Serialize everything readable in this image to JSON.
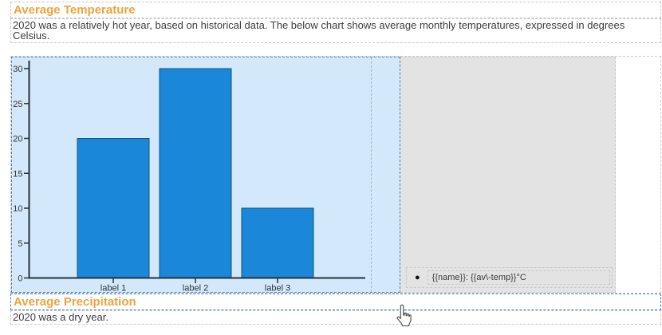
{
  "temperature_section": {
    "heading": "Average Temperature",
    "description": "2020 was a relatively hot year, based on historical data. The below chart shows average monthly temperatures, expressed in degrees Celsius."
  },
  "precipitation_section": {
    "heading": "Average Precipitation",
    "description": "2020 was a dry year."
  },
  "legend": {
    "bullet": "●",
    "item_template": "{{name}}: {{av\\-temp}}°C"
  },
  "chart_data": {
    "type": "bar",
    "categories": [
      "label 1",
      "label 2",
      "label 3"
    ],
    "values": [
      20,
      30,
      10
    ],
    "title": "",
    "xlabel": "",
    "ylabel": "",
    "ylim": [
      0,
      30
    ],
    "ytick_step": 5,
    "grid": false,
    "legend_position": "right-bottom",
    "bar_color": "#1a87d8",
    "bar_border_color": "#11557f",
    "plot_background": "#d3e8fa",
    "axis_color": "#26323c"
  },
  "colors": {
    "heading_accent": "#f0a33c",
    "selection_border": "#4d84c4",
    "block_border": "#c9c9c9",
    "legend_background": "#e3e3e3"
  }
}
